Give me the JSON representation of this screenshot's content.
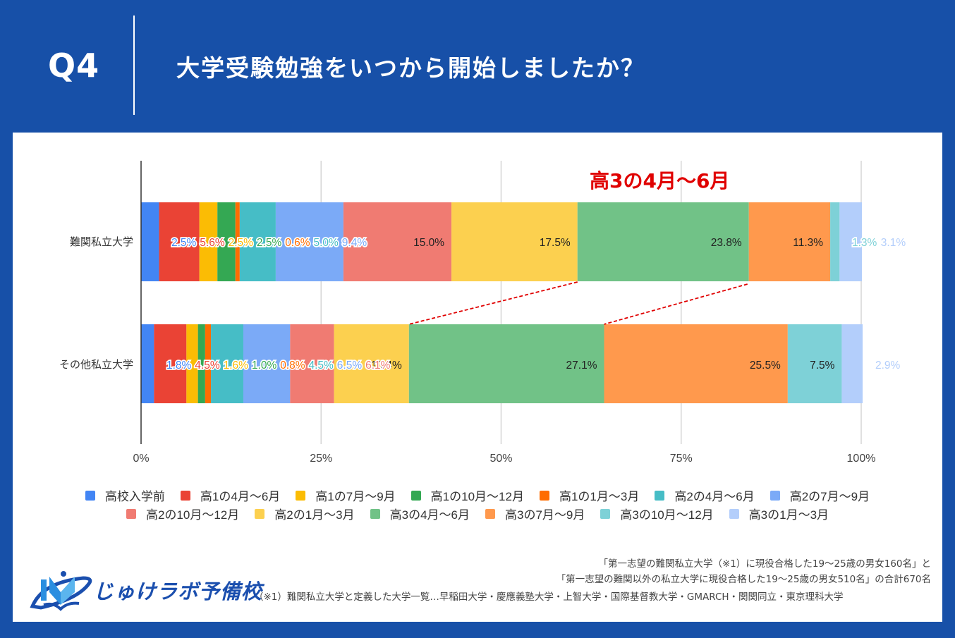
{
  "header": {
    "question_no": "Q4",
    "title": "大学受験勉強をいつから開始しましたか？"
  },
  "annotation": {
    "highlight_label": "高3の4月～6月",
    "highlight_color": "#e00000"
  },
  "chart_data": {
    "type": "bar",
    "orientation": "horizontal",
    "stacked": "percent",
    "title": "大学受験勉強をいつから開始しましたか？",
    "categories": [
      "難関私立大学",
      "その他私立大学"
    ],
    "xlim": [
      0,
      100
    ],
    "x_ticks": [
      "0%",
      "25%",
      "50%",
      "75%",
      "100%"
    ],
    "grid": true,
    "legend_position": "bottom",
    "series": [
      {
        "name": "高校入学前",
        "color": "#4285f4",
        "values": [
          2.5,
          1.8
        ],
        "labels": [
          "2.5%",
          "1.8%"
        ]
      },
      {
        "name": "高1の4月～6月",
        "color": "#ea4335",
        "values": [
          5.6,
          4.5
        ],
        "labels": [
          "5.6%",
          "4.5%"
        ]
      },
      {
        "name": "高1の7月～9月",
        "color": "#fbbc04",
        "values": [
          2.5,
          1.6
        ],
        "labels": [
          "2.5%",
          "1.6%"
        ]
      },
      {
        "name": "高1の10月～12月",
        "color": "#34a853",
        "values": [
          2.5,
          1.0
        ],
        "labels": [
          "2.5%",
          "1.0%"
        ]
      },
      {
        "name": "高1の1月～3月",
        "color": "#ff6d01",
        "values": [
          0.6,
          0.8
        ],
        "labels": [
          "0.6%",
          "0.8%"
        ]
      },
      {
        "name": "高2の4月～6月",
        "color": "#46bdc6",
        "values": [
          5.0,
          4.5
        ],
        "labels": [
          "5.0%",
          "4.5%"
        ]
      },
      {
        "name": "高2の7月～9月",
        "color": "#7baaf7",
        "values": [
          9.4,
          6.5
        ],
        "labels": [
          "9.4%",
          "6.5%"
        ]
      },
      {
        "name": "高2の10月～12月",
        "color": "#f07b72",
        "values": [
          15.0,
          6.1
        ],
        "labels": [
          "15.0%",
          "6.1%"
        ]
      },
      {
        "name": "高2の1月～3月",
        "color": "#fcd04f",
        "values": [
          17.5,
          10.4
        ],
        "labels": [
          "17.5%",
          "10.4%"
        ]
      },
      {
        "name": "高3の4月～6月",
        "color": "#71c287",
        "values": [
          23.8,
          27.1
        ],
        "labels": [
          "23.8%",
          "27.1%"
        ]
      },
      {
        "name": "高3の7月～9月",
        "color": "#ff994d",
        "values": [
          11.3,
          25.5
        ],
        "labels": [
          "11.3%",
          "25.5%"
        ]
      },
      {
        "name": "高3の10月～12月",
        "color": "#7ed1d7",
        "values": [
          1.3,
          7.5
        ],
        "labels": [
          "1.3%",
          "7.5%"
        ]
      },
      {
        "name": "高3の1月～3月",
        "color": "#b3cefb",
        "values": [
          3.1,
          2.9
        ],
        "labels": [
          "3.1%",
          "2.9%"
        ]
      }
    ],
    "highlighted_series": "高3の4月～6月"
  },
  "notes": {
    "line1": "「第一志望の難関私立大学（※1）に現役合格した19～25歳の男女160名」と",
    "line2": "「第一志望の難関以外の私立大学に現役合格した19～25歳の男女510名」の合計670名",
    "footnote": "（※1）難関私立大学と定義した大学一覧…早稲田大学・慶應義塾大学・上智大学・国際基督教大学・GMARCH・関関同立・東京理科大学"
  },
  "logo": {
    "text": "じゅけラボ予備校",
    "icon": "open-book-logo-icon"
  }
}
